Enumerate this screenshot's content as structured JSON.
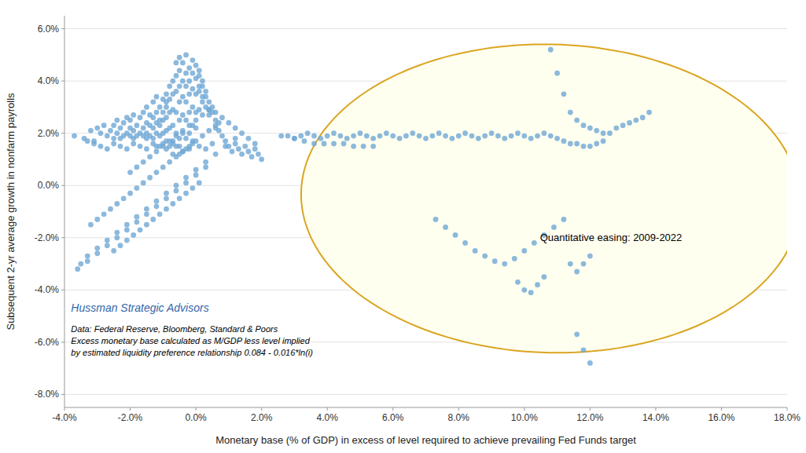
{
  "chart_data": {
    "type": "scatter",
    "x_label": "Monetary base (% of GDP) in excess of level required to achieve prevailing Fed Funds target",
    "y_label": "Subsequent 2-yr average growth in nonfarm payrolls",
    "xlim": [
      -0.04,
      0.18
    ],
    "ylim": [
      -0.085,
      0.065
    ],
    "xticks": [
      {
        "value": -0.04,
        "label": "-4.0%"
      },
      {
        "value": -0.02,
        "label": "-2.0%"
      },
      {
        "value": 0.0,
        "label": "0.0%"
      },
      {
        "value": 0.02,
        "label": "2.0%"
      },
      {
        "value": 0.04,
        "label": "4.0%"
      },
      {
        "value": 0.06,
        "label": "6.0%"
      },
      {
        "value": 0.08,
        "label": "8.0%"
      },
      {
        "value": 0.1,
        "label": "10.0%"
      },
      {
        "value": 0.12,
        "label": "12.0%"
      },
      {
        "value": 0.14,
        "label": "14.0%"
      },
      {
        "value": 0.16,
        "label": "16.0%"
      },
      {
        "value": 0.18,
        "label": "18.0%"
      }
    ],
    "yticks": [
      {
        "value": -0.08,
        "label": "-8.0%"
      },
      {
        "value": -0.06,
        "label": "-6.0%"
      },
      {
        "value": -0.04,
        "label": "-4.0%"
      },
      {
        "value": -0.02,
        "label": "-2.0%"
      },
      {
        "value": 0.0,
        "label": "0.0%"
      },
      {
        "value": 0.02,
        "label": "2.0%"
      },
      {
        "value": 0.04,
        "label": "4.0%"
      },
      {
        "value": 0.06,
        "label": "6.0%"
      }
    ],
    "grid": true,
    "ellipse": {
      "cx": 0.108,
      "cy": -0.005,
      "width": 0.152,
      "height": 0.118,
      "angle": -3,
      "color": "#DAA520",
      "fill": "#fffff0"
    },
    "annotations": [
      {
        "text": "Quantitative easing: 2009-2022",
        "x": 0.148,
        "y": -0.02
      },
      {
        "text": "Hussman Strategic Advisors",
        "x": -0.038,
        "y": -0.047,
        "color": "#3366aa"
      }
    ],
    "footnote": [
      "Data: Federal Reserve, Bloomberg, Standard & Poors",
      "Excess monetary base calculated as M/GDP less level implied",
      "by estimated liquidity preference relationship 0.084 - 0.016*ln(i)"
    ],
    "series": [
      {
        "color": "#6fa8d4",
        "x": [
          -0.037,
          -0.034,
          -0.032,
          -0.031,
          -0.03,
          -0.029,
          -0.028,
          -0.027,
          -0.026,
          -0.025,
          -0.025,
          -0.024,
          -0.024,
          -0.023,
          -0.023,
          -0.022,
          -0.022,
          -0.021,
          -0.021,
          -0.02,
          -0.02,
          -0.02,
          -0.019,
          -0.019,
          -0.019,
          -0.018,
          -0.018,
          -0.017,
          -0.017,
          -0.016,
          -0.016,
          -0.016,
          -0.015,
          -0.015,
          -0.015,
          -0.015,
          -0.014,
          -0.014,
          -0.014,
          -0.013,
          -0.013,
          -0.013,
          -0.013,
          -0.012,
          -0.012,
          -0.012,
          -0.012,
          -0.012,
          -0.011,
          -0.011,
          -0.011,
          -0.011,
          -0.01,
          -0.01,
          -0.01,
          -0.01,
          -0.01,
          -0.009,
          -0.009,
          -0.009,
          -0.009,
          -0.009,
          -0.009,
          -0.008,
          -0.008,
          -0.008,
          -0.008,
          -0.008,
          -0.007,
          -0.007,
          -0.007,
          -0.007,
          -0.007,
          -0.007,
          -0.006,
          -0.006,
          -0.006,
          -0.006,
          -0.006,
          -0.006,
          -0.005,
          -0.005,
          -0.005,
          -0.005,
          -0.005,
          -0.005,
          -0.005,
          -0.004,
          -0.004,
          -0.004,
          -0.004,
          -0.004,
          -0.004,
          -0.003,
          -0.003,
          -0.003,
          -0.003,
          -0.003,
          -0.003,
          -0.002,
          -0.002,
          -0.002,
          -0.002,
          -0.002,
          -0.002,
          -0.001,
          -0.001,
          -0.001,
          -0.001,
          -0.001,
          -0.001,
          0.0,
          0.0,
          0.0,
          0.0,
          0.0,
          0.001,
          0.001,
          0.001,
          0.001,
          0.001,
          0.002,
          0.002,
          0.002,
          0.002,
          0.003,
          0.003,
          0.003,
          0.004,
          0.004,
          0.004,
          0.005,
          0.005,
          0.006,
          0.006,
          0.007,
          0.007,
          0.008,
          0.009,
          0.01,
          0.011,
          0.012,
          0.013,
          0.014,
          0.015,
          0.016,
          0.017,
          0.018,
          0.019,
          0.02,
          -0.033,
          -0.031,
          -0.029,
          -0.027,
          -0.025,
          -0.023,
          -0.021,
          -0.019,
          -0.017,
          -0.015,
          -0.013,
          -0.011,
          -0.009,
          -0.007,
          -0.005,
          -0.003,
          -0.001,
          0.001,
          0.003,
          0.005,
          -0.032,
          -0.03,
          -0.028,
          -0.026,
          -0.024,
          -0.022,
          -0.02,
          -0.018,
          -0.016,
          -0.014,
          -0.012,
          -0.01,
          -0.008,
          -0.006,
          -0.004,
          -0.002,
          0.0,
          0.002,
          0.004,
          0.006,
          -0.035,
          -0.033,
          -0.03,
          -0.027,
          -0.024,
          -0.021,
          -0.018,
          -0.015,
          -0.012,
          -0.009,
          -0.006,
          -0.003,
          0.0,
          0.003,
          0.006,
          0.009,
          0.012,
          -0.036,
          -0.033,
          -0.03,
          -0.027,
          -0.024,
          -0.021,
          -0.018,
          -0.015,
          -0.012,
          -0.009,
          -0.006,
          -0.003,
          0.0,
          0.003,
          -0.025,
          -0.023,
          -0.021,
          -0.019,
          -0.017,
          -0.015,
          -0.013,
          -0.011,
          -0.009,
          -0.007,
          -0.005,
          -0.003,
          -0.001,
          0.001,
          -0.02,
          -0.018,
          -0.016,
          -0.014,
          -0.012,
          -0.01,
          -0.008,
          -0.006,
          -0.004,
          -0.002,
          0.0,
          0.002,
          0.004,
          0.006,
          0.008,
          0.01,
          0.012,
          0.014,
          0.016,
          0.018
        ],
        "values": [
          0.019,
          0.018,
          0.021,
          0.017,
          0.022,
          0.02,
          0.023,
          0.019,
          0.021,
          0.018,
          0.023,
          0.02,
          0.025,
          0.018,
          0.022,
          0.019,
          0.024,
          0.02,
          0.026,
          0.019,
          0.022,
          0.025,
          0.018,
          0.021,
          0.027,
          0.019,
          0.023,
          0.02,
          0.026,
          0.019,
          0.022,
          0.028,
          0.02,
          0.024,
          0.03,
          0.018,
          0.023,
          0.027,
          0.019,
          0.022,
          0.026,
          0.032,
          0.018,
          0.024,
          0.028,
          0.02,
          0.034,
          0.015,
          0.025,
          0.03,
          0.019,
          0.023,
          0.028,
          0.033,
          0.02,
          0.025,
          0.016,
          0.03,
          0.035,
          0.021,
          0.026,
          0.017,
          0.032,
          0.028,
          0.038,
          0.022,
          0.015,
          0.033,
          0.029,
          0.04,
          0.023,
          0.035,
          0.017,
          0.012,
          0.036,
          0.042,
          0.028,
          0.02,
          0.015,
          0.047,
          0.038,
          0.032,
          0.025,
          0.018,
          0.044,
          0.012,
          0.049,
          0.04,
          0.034,
          0.027,
          0.02,
          0.013,
          0.047,
          0.043,
          0.038,
          0.032,
          0.025,
          0.018,
          0.05,
          0.045,
          0.04,
          0.035,
          0.028,
          0.02,
          0.014,
          0.048,
          0.043,
          0.037,
          0.03,
          0.023,
          0.017,
          0.046,
          0.041,
          0.035,
          0.028,
          0.022,
          0.044,
          0.038,
          0.042,
          0.036,
          0.029,
          0.04,
          0.034,
          0.038,
          0.032,
          0.036,
          0.03,
          0.034,
          0.032,
          0.029,
          0.027,
          0.03,
          0.028,
          0.025,
          0.022,
          0.024,
          0.021,
          0.019,
          0.017,
          0.015,
          0.013,
          0.016,
          0.014,
          0.012,
          0.015,
          0.013,
          0.011,
          0.014,
          0.012,
          0.01,
          0.017,
          0.016,
          0.015,
          0.014,
          0.016,
          0.015,
          0.014,
          0.016,
          0.015,
          0.014,
          0.016,
          0.015,
          0.014,
          0.016,
          0.015,
          0.014,
          0.016,
          0.015,
          0.014,
          0.016,
          -0.015,
          -0.013,
          -0.011,
          -0.009,
          -0.007,
          -0.005,
          -0.003,
          -0.001,
          0.001,
          0.003,
          0.005,
          0.007,
          0.009,
          0.011,
          0.013,
          0.015,
          0.017,
          0.019,
          0.021,
          0.023,
          -0.03,
          -0.027,
          -0.024,
          -0.021,
          -0.018,
          -0.015,
          -0.012,
          -0.009,
          -0.006,
          -0.003,
          0.0,
          0.003,
          0.006,
          0.009,
          0.012,
          0.015,
          0.018,
          -0.032,
          -0.029,
          -0.026,
          -0.023,
          -0.02,
          -0.017,
          -0.014,
          -0.011,
          -0.008,
          -0.005,
          -0.002,
          0.001,
          0.004,
          0.007,
          -0.025,
          -0.023,
          -0.021,
          -0.019,
          -0.017,
          -0.015,
          -0.013,
          -0.011,
          -0.009,
          -0.007,
          -0.005,
          -0.003,
          -0.001,
          0.001,
          0.005,
          0.007,
          0.009,
          0.011,
          0.013,
          0.015,
          0.017,
          0.019,
          0.021,
          0.023,
          0.025,
          0.027,
          0.029,
          0.028,
          0.026,
          0.024,
          0.022,
          0.02,
          0.018,
          0.016
        ]
      },
      {
        "color": "#6fa8d4",
        "x": [
          0.026,
          0.028,
          0.03,
          0.032,
          0.034,
          0.036,
          0.038,
          0.04,
          0.042,
          0.044,
          0.046,
          0.048,
          0.05,
          0.052,
          0.054,
          0.056,
          0.058,
          0.06,
          0.062,
          0.064,
          0.066,
          0.068,
          0.07,
          0.072,
          0.074,
          0.076,
          0.078,
          0.08,
          0.082,
          0.084,
          0.086,
          0.088,
          0.09,
          0.092,
          0.094,
          0.096,
          0.098,
          0.1,
          0.102,
          0.104,
          0.106,
          0.108,
          0.11,
          0.112,
          0.114,
          0.116,
          0.118,
          0.12,
          0.122,
          0.124,
          0.126,
          0.128,
          0.13,
          0.132,
          0.134,
          0.136,
          0.138,
          0.03,
          0.033,
          0.036,
          0.039,
          0.042,
          0.045,
          0.048,
          0.051,
          0.054,
          0.108,
          0.11,
          0.112,
          0.114,
          0.116,
          0.118,
          0.12,
          0.122,
          0.124,
          0.073,
          0.076,
          0.079,
          0.082,
          0.085,
          0.088,
          0.091,
          0.094,
          0.097,
          0.1,
          0.103,
          0.106,
          0.109,
          0.112,
          0.098,
          0.1,
          0.102,
          0.104,
          0.106,
          0.114,
          0.116,
          0.118,
          0.12,
          0.116,
          0.118,
          0.12
        ],
        "values": [
          0.019,
          0.019,
          0.018,
          0.019,
          0.02,
          0.019,
          0.018,
          0.019,
          0.02,
          0.019,
          0.018,
          0.019,
          0.02,
          0.019,
          0.018,
          0.019,
          0.02,
          0.019,
          0.018,
          0.019,
          0.02,
          0.019,
          0.018,
          0.019,
          0.02,
          0.019,
          0.018,
          0.019,
          0.02,
          0.019,
          0.018,
          0.019,
          0.02,
          0.019,
          0.018,
          0.019,
          0.02,
          0.019,
          0.018,
          0.019,
          0.02,
          0.019,
          0.018,
          0.017,
          0.016,
          0.016,
          0.015,
          0.015,
          0.016,
          0.017,
          0.02,
          0.022,
          0.023,
          0.024,
          0.025,
          0.026,
          0.028,
          0.018,
          0.017,
          0.016,
          0.016,
          0.016,
          0.016,
          0.015,
          0.015,
          0.015,
          0.052,
          0.043,
          0.035,
          0.028,
          0.025,
          0.023,
          0.022,
          0.021,
          0.02,
          -0.013,
          -0.016,
          -0.019,
          -0.022,
          -0.025,
          -0.027,
          -0.029,
          -0.03,
          -0.028,
          -0.025,
          -0.022,
          -0.019,
          -0.016,
          -0.013,
          -0.037,
          -0.04,
          -0.041,
          -0.038,
          -0.035,
          -0.03,
          -0.033,
          -0.03,
          -0.027,
          -0.057,
          -0.063,
          -0.068
        ]
      }
    ]
  }
}
